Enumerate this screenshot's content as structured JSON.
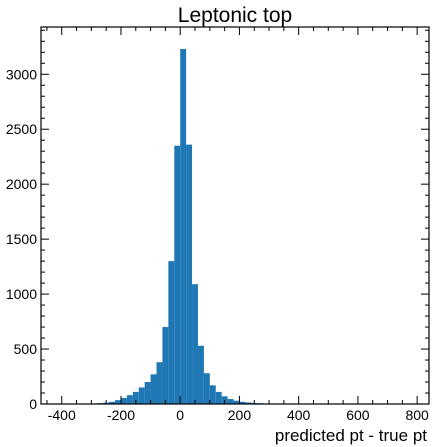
{
  "chart_data": {
    "type": "bar",
    "title": "Leptonic top",
    "xlabel": "predicted pt - true pt",
    "ylabel": "",
    "xlim": [
      -470,
      840
    ],
    "ylim": [
      0,
      3430
    ],
    "x_ticks": [
      -400,
      -200,
      0,
      200,
      400,
      600,
      800
    ],
    "y_ticks": [
      0,
      500,
      1000,
      1500,
      2000,
      2500,
      3000
    ],
    "bin_width": 20,
    "bar_color": "#1f77b4",
    "bins": [
      {
        "x0": -300,
        "value": 4
      },
      {
        "x0": -280,
        "value": 8
      },
      {
        "x0": -260,
        "value": 12
      },
      {
        "x0": -240,
        "value": 20
      },
      {
        "x0": -220,
        "value": 35
      },
      {
        "x0": -200,
        "value": 55
      },
      {
        "x0": -180,
        "value": 80
      },
      {
        "x0": -160,
        "value": 110
      },
      {
        "x0": -140,
        "value": 150
      },
      {
        "x0": -120,
        "value": 200
      },
      {
        "x0": -100,
        "value": 270
      },
      {
        "x0": -80,
        "value": 380
      },
      {
        "x0": -60,
        "value": 700
      },
      {
        "x0": -40,
        "value": 1300
      },
      {
        "x0": -20,
        "value": 2350
      },
      {
        "x0": 0,
        "value": 3230
      },
      {
        "x0": 20,
        "value": 2360
      },
      {
        "x0": 40,
        "value": 1090
      },
      {
        "x0": 60,
        "value": 530
      },
      {
        "x0": 80,
        "value": 280
      },
      {
        "x0": 100,
        "value": 170
      },
      {
        "x0": 120,
        "value": 110
      },
      {
        "x0": 140,
        "value": 70
      },
      {
        "x0": 160,
        "value": 45
      },
      {
        "x0": 180,
        "value": 30
      },
      {
        "x0": 200,
        "value": 20
      },
      {
        "x0": 220,
        "value": 14
      },
      {
        "x0": 240,
        "value": 10
      },
      {
        "x0": 260,
        "value": 7
      },
      {
        "x0": 280,
        "value": 5
      },
      {
        "x0": 300,
        "value": 3
      },
      {
        "x0": 320,
        "value": 2
      }
    ]
  }
}
